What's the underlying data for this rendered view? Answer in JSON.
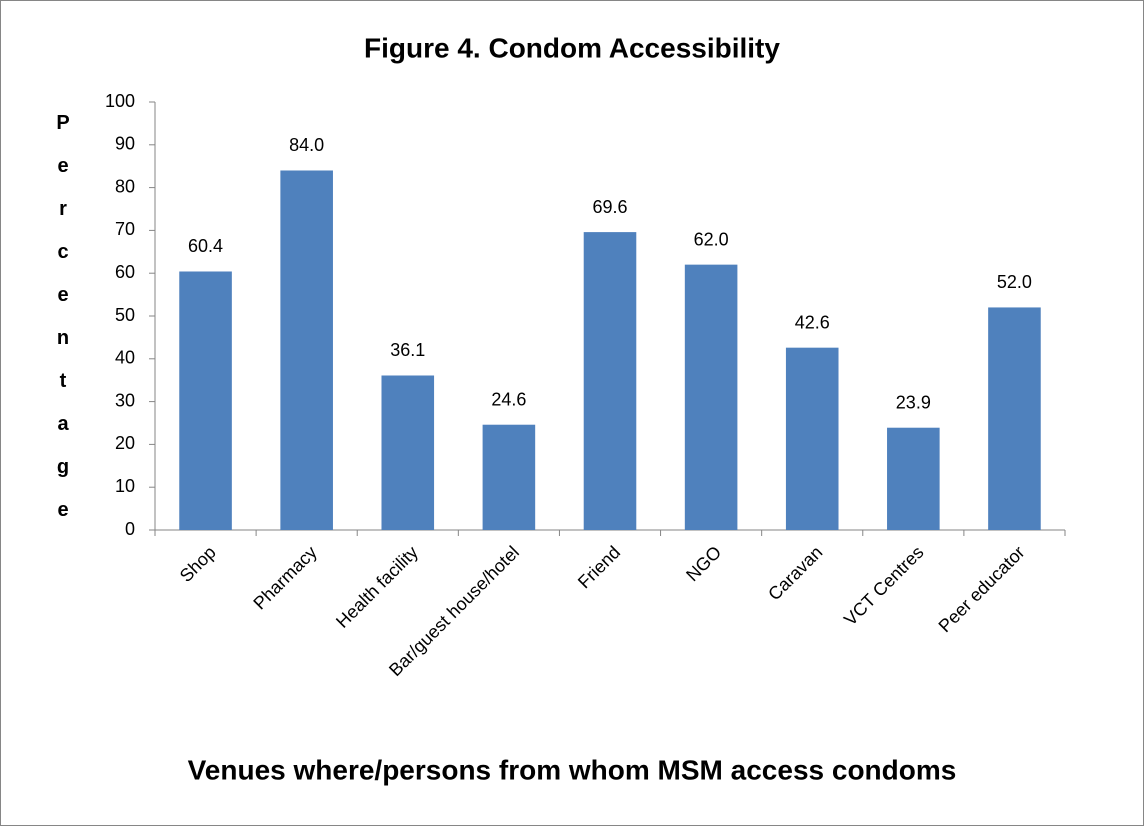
{
  "chart_data": {
    "type": "bar",
    "title": "Figure 4. Condom Accessibility",
    "x_label": "Venues where/persons from whom MSM access condoms",
    "y_label": "Percentage",
    "categories": [
      "Shop",
      "Pharmacy",
      "Health facility",
      "Bar/guest house/hotel",
      "Friend",
      "NGO",
      "Caravan",
      "VCT Centres",
      "Peer educator"
    ],
    "values": [
      60.4,
      84.0,
      36.1,
      24.6,
      69.6,
      62.0,
      42.6,
      23.9,
      52.0
    ],
    "value_labels": [
      "60.4",
      "84.0",
      "36.1",
      "24.6",
      "69.6",
      "62.0",
      "42.6",
      "23.9",
      "52.0"
    ],
    "color": "#4f81bd",
    "ylim": [
      0,
      100
    ],
    "yticks": [
      0,
      10,
      20,
      30,
      40,
      50,
      60,
      70,
      80,
      90,
      100
    ],
    "grid": false
  }
}
